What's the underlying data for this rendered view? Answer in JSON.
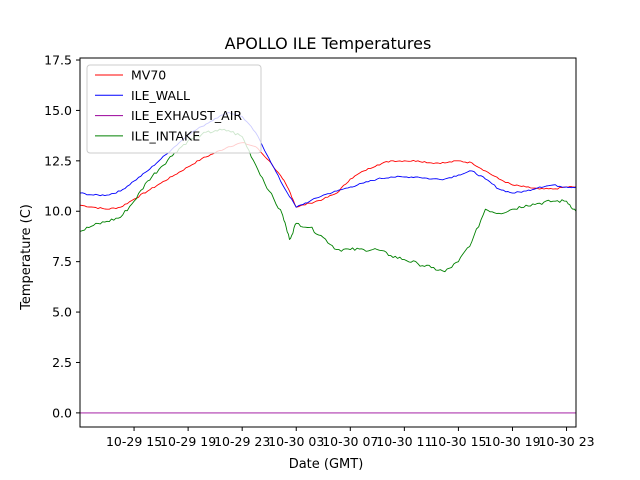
{
  "chart_data": {
    "type": "line",
    "title": "APOLLO ILE Temperatures",
    "xlabel": "Date (GMT)",
    "ylabel": "Temperature (C)",
    "x_unit": "hours since 10-29 11:00 GMT",
    "xlim": [
      0,
      36.7
    ],
    "ylim": [
      -0.7,
      17.6
    ],
    "x_ticks": [
      {
        "value": 4,
        "label": "10-29 15"
      },
      {
        "value": 8,
        "label": "10-29 19"
      },
      {
        "value": 12,
        "label": "10-29 23"
      },
      {
        "value": 16,
        "label": "10-30 03"
      },
      {
        "value": 20,
        "label": "10-30 07"
      },
      {
        "value": 24,
        "label": "10-30 11"
      },
      {
        "value": 28,
        "label": "10-30 15"
      },
      {
        "value": 32,
        "label": "10-30 19"
      },
      {
        "value": 36,
        "label": "10-30 23"
      }
    ],
    "y_ticks": [
      {
        "value": 0.0,
        "label": "0.0"
      },
      {
        "value": 2.5,
        "label": "2.5"
      },
      {
        "value": 5.0,
        "label": "5.0"
      },
      {
        "value": 7.5,
        "label": "7.5"
      },
      {
        "value": 10.0,
        "label": "10.0"
      },
      {
        "value": 12.5,
        "label": "12.5"
      },
      {
        "value": 15.0,
        "label": "15.0"
      },
      {
        "value": 17.5,
        "label": "17.5"
      }
    ],
    "legend_position": "top-left",
    "series": [
      {
        "name": "MV70",
        "color": "#ff0000",
        "x": [
          0,
          1,
          2,
          3,
          4,
          5,
          6,
          7,
          8,
          9,
          10,
          11,
          12,
          13,
          14,
          15,
          15.5,
          16,
          17,
          18,
          19,
          20,
          21,
          22,
          23,
          24,
          25,
          26,
          27,
          28,
          29,
          30,
          31,
          32,
          33,
          34,
          35,
          36,
          36.7
        ],
        "y": [
          10.3,
          10.2,
          10.1,
          10.2,
          10.6,
          11.0,
          11.4,
          11.8,
          12.2,
          12.6,
          12.9,
          13.2,
          13.4,
          13.2,
          12.5,
          11.6,
          11.0,
          10.2,
          10.4,
          10.6,
          10.9,
          11.6,
          12.0,
          12.3,
          12.5,
          12.5,
          12.5,
          12.4,
          12.4,
          12.5,
          12.4,
          12.0,
          11.6,
          11.3,
          11.2,
          11.1,
          11.1,
          11.2,
          11.2
        ]
      },
      {
        "name": "ILE_WALL",
        "color": "#0000ff",
        "x": [
          0,
          1,
          2,
          3,
          4,
          5,
          6,
          7,
          8,
          9,
          10,
          11,
          12,
          13,
          14,
          15,
          16,
          17,
          18,
          19,
          20,
          21,
          22,
          23,
          24,
          25,
          26,
          27,
          28,
          29,
          30,
          31,
          32,
          33,
          34,
          35,
          36,
          36.7
        ],
        "y": [
          10.9,
          10.8,
          10.8,
          11.0,
          11.5,
          12.0,
          12.6,
          13.2,
          13.8,
          14.2,
          14.6,
          14.9,
          14.7,
          13.9,
          12.6,
          11.3,
          10.2,
          10.5,
          10.8,
          11.0,
          11.2,
          11.4,
          11.6,
          11.7,
          11.7,
          11.7,
          11.6,
          11.6,
          11.8,
          12.0,
          11.6,
          11.1,
          10.9,
          11.0,
          11.2,
          11.3,
          11.2,
          11.2
        ]
      },
      {
        "name": "ILE_EXHAUST_AIR",
        "color": "#990099",
        "x": [
          0,
          36.7
        ],
        "y": [
          0.0,
          0.0
        ]
      },
      {
        "name": "ILE_INTAKE",
        "color": "#008000",
        "x": [
          0,
          1,
          2,
          3,
          4,
          5,
          6,
          7,
          8,
          9,
          10,
          11,
          12,
          13,
          14,
          15,
          15.5,
          16,
          17,
          18,
          19,
          20,
          21,
          22,
          23,
          24,
          25,
          26,
          27,
          28,
          29,
          30,
          31,
          32,
          33,
          34,
          35,
          36,
          36.7
        ],
        "y": [
          9.0,
          9.3,
          9.5,
          9.7,
          10.5,
          11.5,
          12.2,
          12.9,
          13.5,
          13.8,
          14.0,
          14.0,
          13.7,
          12.3,
          11.0,
          9.8,
          8.6,
          9.4,
          9.2,
          8.7,
          8.1,
          8.1,
          8.1,
          8.1,
          7.8,
          7.6,
          7.4,
          7.2,
          7.0,
          7.5,
          8.5,
          10.1,
          9.9,
          10.1,
          10.3,
          10.4,
          10.5,
          10.5,
          10.0
        ]
      }
    ]
  }
}
